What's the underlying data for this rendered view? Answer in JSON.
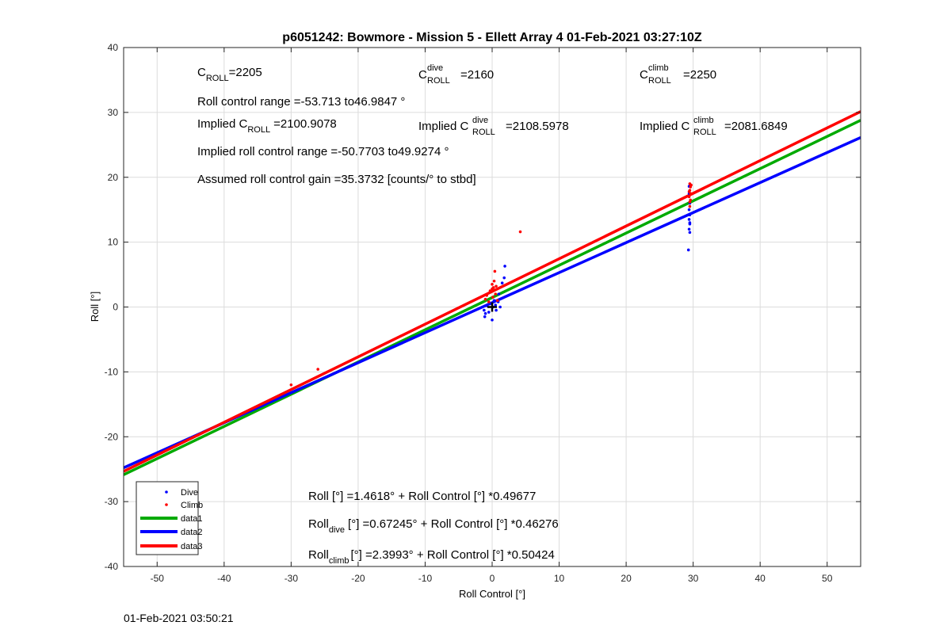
{
  "chart_data": {
    "type": "scatter",
    "title": "p6051242: Bowmore - Mission 5 - Ellett Array 4 01-Feb-2021 03:27:10Z",
    "xlabel": "Roll Control [°]",
    "ylabel": "Roll [°]",
    "xlim": [
      -55,
      55
    ],
    "ylim": [
      -40,
      40
    ],
    "xticks": [
      -50,
      -40,
      -30,
      -20,
      -10,
      0,
      10,
      20,
      30,
      40,
      50
    ],
    "yticks": [
      -40,
      -30,
      -20,
      -10,
      0,
      10,
      20,
      30,
      40
    ],
    "grid": true,
    "legend_placement": "bottom-left",
    "series": [
      {
        "name": "Dive",
        "kind": "points",
        "color": "#0000ff",
        "points": [
          [
            -1.2,
            -0.5
          ],
          [
            -1.1,
            -1.5
          ],
          [
            -1.0,
            -1.0
          ],
          [
            -0.8,
            0.2
          ],
          [
            -0.5,
            -0.8
          ],
          [
            -0.3,
            0.5
          ],
          [
            0.0,
            -2.0
          ],
          [
            0.1,
            0.0
          ],
          [
            0.3,
            1.0
          ],
          [
            0.5,
            0.3
          ],
          [
            0.6,
            -0.5
          ],
          [
            0.9,
            0.8
          ],
          [
            1.0,
            2.0
          ],
          [
            1.2,
            0.0
          ],
          [
            1.5,
            3.7
          ],
          [
            1.8,
            4.5
          ],
          [
            1.9,
            6.3
          ],
          [
            29.4,
            18.6
          ],
          [
            29.4,
            17.5
          ],
          [
            29.5,
            16.0
          ],
          [
            29.4,
            15.0
          ],
          [
            29.5,
            14.2
          ],
          [
            29.4,
            13.5
          ],
          [
            29.5,
            12.8
          ],
          [
            29.4,
            12.0
          ],
          [
            29.5,
            11.5
          ],
          [
            29.3,
            8.8
          ],
          [
            29.5,
            13.0
          ]
        ]
      },
      {
        "name": "Climb",
        "kind": "points",
        "color": "#ff0000",
        "points": [
          [
            -30,
            -12.0
          ],
          [
            -26,
            -9.6
          ],
          [
            -1.0,
            1.2
          ],
          [
            -0.8,
            1.8
          ],
          [
            -0.5,
            0.8
          ],
          [
            -0.3,
            2.5
          ],
          [
            0.0,
            3.5
          ],
          [
            0.0,
            2.8
          ],
          [
            0.1,
            1.5
          ],
          [
            0.2,
            3.0
          ],
          [
            0.3,
            4.0
          ],
          [
            0.5,
            2.0
          ],
          [
            0.6,
            3.2
          ],
          [
            0.8,
            1.0
          ],
          [
            0.4,
            5.5
          ],
          [
            4.2,
            11.6
          ],
          [
            29.5,
            19.0
          ],
          [
            29.6,
            18.5
          ],
          [
            29.5,
            18.0
          ],
          [
            29.6,
            17.5
          ],
          [
            29.4,
            17.0
          ],
          [
            29.6,
            16.5
          ],
          [
            29.5,
            16.2
          ],
          [
            29.4,
            17.8
          ],
          [
            29.7,
            18.8
          ],
          [
            29.5,
            15.5
          ]
        ]
      },
      {
        "name": "data1",
        "kind": "line",
        "color": "#00aa00",
        "intercept": 1.4618,
        "slope": 0.49677
      },
      {
        "name": "data2",
        "kind": "line",
        "color": "#0000ff",
        "intercept": 0.67245,
        "slope": 0.46276
      },
      {
        "name": "data3",
        "kind": "line",
        "color": "#ff0000",
        "intercept": 2.3993,
        "slope": 0.50424
      }
    ],
    "marker": {
      "x": 0,
      "y": 0,
      "shape": "plus",
      "color": "#000000"
    },
    "annotations": {
      "c_roll": {
        "prefix": "C",
        "sub": "ROLL",
        "text": "=2205"
      },
      "c_roll_dive": {
        "prefix": "C",
        "sup": "dive",
        "sub": "ROLL",
        "text": "=2160"
      },
      "c_roll_climb": {
        "prefix": "C",
        "sup": "climb",
        "sub": "ROLL",
        "text": "=2250"
      },
      "roll_control_range": "Roll control range =-53.713 to46.9847 °",
      "implied_c_roll": {
        "prefix": "Implied C",
        "sub": "ROLL",
        "text": "=2100.9078"
      },
      "implied_c_roll_dive": {
        "prefix": "Implied C",
        "sup": "dive",
        "sub": "ROLL",
        "text": "=2108.5978"
      },
      "implied_c_roll_climb": {
        "prefix": "Implied C",
        "sup": "climb",
        "sub": "ROLL",
        "text": "=2081.6849"
      },
      "implied_range": "Implied roll control range =-50.7703 to49.9274 °",
      "gain": "Assumed roll control gain =35.3732 [counts/° to stbd]",
      "fit_all": "Roll [°] =1.4618° + Roll Control [°] *0.49677",
      "fit_dive": {
        "prefix": "Roll",
        "sub": "dive",
        "text": "[°] =0.67245° + Roll Control [°] *0.46276"
      },
      "fit_climb": {
        "prefix": "Roll",
        "sub": "climb",
        "text": "[°] =2.3993° + Roll Control [°] *0.50424"
      }
    }
  },
  "footer_timestamp": "01-Feb-2021 03:50:21"
}
